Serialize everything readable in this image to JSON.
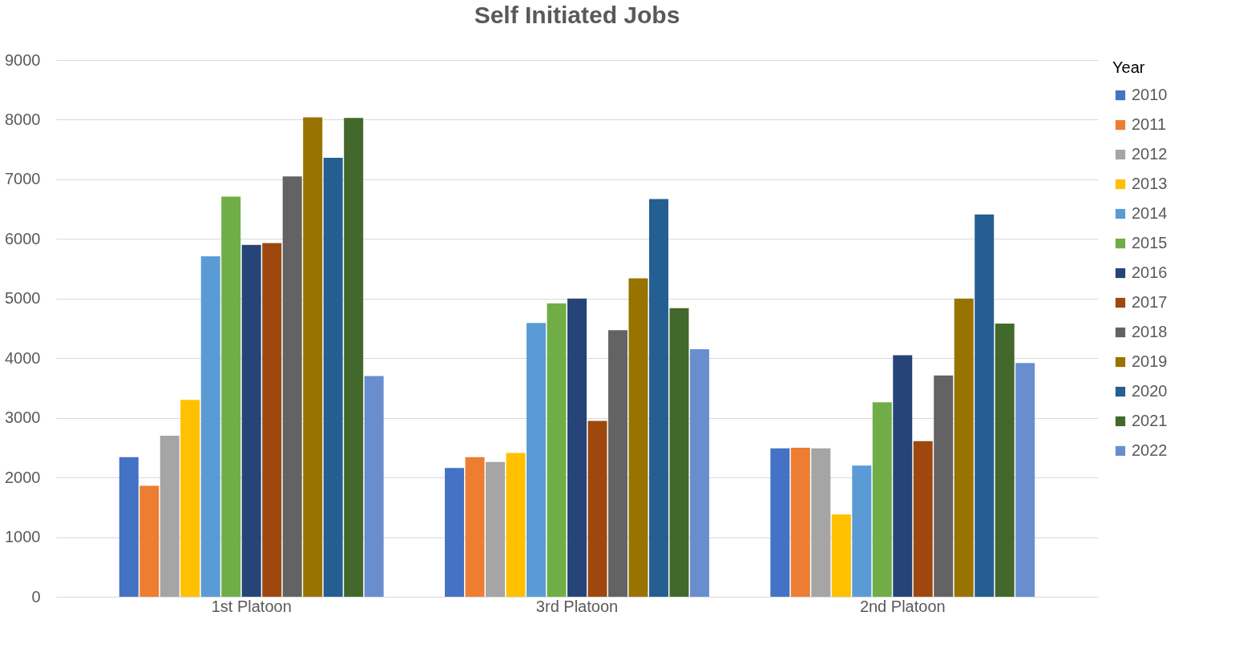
{
  "chart_data": {
    "type": "bar",
    "title": "Self Initiated Jobs",
    "legend_title": "Year",
    "legend": "right",
    "grid": "y",
    "categories": [
      "1st Platoon",
      "3rd Platoon",
      "2nd Platoon"
    ],
    "ylim": [
      0,
      9000
    ],
    "yticks": [
      0,
      1000,
      2000,
      3000,
      4000,
      5000,
      6000,
      7000,
      8000,
      9000
    ],
    "series": [
      {
        "name": "2010",
        "color": "#4472c4",
        "values": [
          2340,
          2160,
          2490
        ]
      },
      {
        "name": "2011",
        "color": "#ed7d31",
        "values": [
          1860,
          2340,
          2500
        ]
      },
      {
        "name": "2012",
        "color": "#a5a5a5",
        "values": [
          2700,
          2260,
          2490
        ]
      },
      {
        "name": "2013",
        "color": "#ffc000",
        "values": [
          3300,
          2410,
          1380
        ]
      },
      {
        "name": "2014",
        "color": "#5b9bd5",
        "values": [
          5710,
          4590,
          2200
        ]
      },
      {
        "name": "2015",
        "color": "#70ad47",
        "values": [
          6710,
          4920,
          3260
        ]
      },
      {
        "name": "2016",
        "color": "#264478",
        "values": [
          5900,
          5000,
          4050
        ]
      },
      {
        "name": "2017",
        "color": "#9e480e",
        "values": [
          5930,
          2950,
          2610
        ]
      },
      {
        "name": "2018",
        "color": "#636363",
        "values": [
          7050,
          4470,
          3710
        ]
      },
      {
        "name": "2019",
        "color": "#997300",
        "values": [
          8040,
          5340,
          5000
        ]
      },
      {
        "name": "2020",
        "color": "#255e91",
        "values": [
          7360,
          6670,
          6410
        ]
      },
      {
        "name": "2021",
        "color": "#43682b",
        "values": [
          8030,
          4840,
          4580
        ]
      },
      {
        "name": "2022",
        "color": "#698ed0",
        "values": [
          3700,
          4150,
          3920
        ]
      }
    ]
  }
}
